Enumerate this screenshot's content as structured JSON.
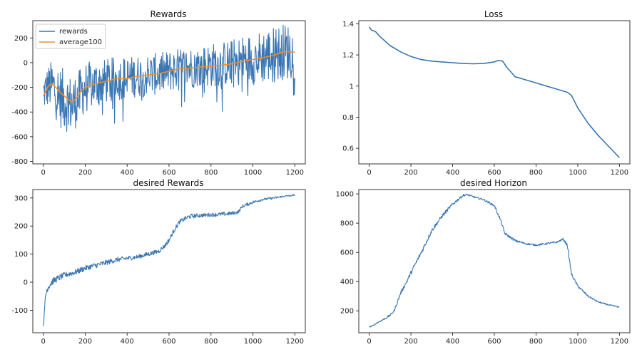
{
  "figure": {
    "background": "#ffffff"
  },
  "colors": {
    "series_blue": "#3a76b2",
    "series_orange": "#f28e2b",
    "axis": "#222222"
  },
  "chart_data": [
    {
      "type": "line",
      "title": "Rewards",
      "xlim": [
        -50,
        1250
      ],
      "ylim": [
        -820,
        340
      ],
      "xticks": [
        0,
        200,
        400,
        600,
        800,
        1000,
        1200
      ],
      "yticks": [
        -800,
        -600,
        -400,
        -200,
        0,
        200
      ],
      "legend": "top-left",
      "series": [
        {
          "name": "rewards",
          "color": "#3a76b2",
          "noisy": true,
          "x": [
            0,
            20,
            40,
            60,
            80,
            100,
            120,
            140,
            160,
            180,
            200,
            250,
            300,
            350,
            400,
            450,
            500,
            550,
            600,
            650,
            700,
            750,
            800,
            850,
            900,
            950,
            1000,
            1050,
            1100,
            1150,
            1200
          ],
          "y": [
            -250,
            -200,
            -180,
            -230,
            -280,
            -300,
            -330,
            -340,
            -300,
            -250,
            -200,
            -170,
            -150,
            -130,
            -120,
            -110,
            -100,
            -90,
            -70,
            -50,
            -40,
            -30,
            -20,
            -10,
            0,
            20,
            30,
            50,
            70,
            90,
            90
          ],
          "amplitude": [
            150,
            170,
            200,
            230,
            250,
            250,
            240,
            230,
            220,
            210,
            200,
            190,
            180,
            180,
            170,
            170,
            170,
            170,
            170,
            170,
            170,
            170,
            180,
            180,
            190,
            200,
            210,
            220,
            230,
            230,
            230
          ]
        },
        {
          "name": "average100",
          "color": "#f28e2b",
          "noisy": false,
          "x": [
            0,
            10,
            20,
            30,
            40,
            60,
            80,
            100,
            120,
            140,
            160,
            180,
            200,
            250,
            300,
            350,
            400,
            450,
            500,
            550,
            600,
            650,
            700,
            750,
            800,
            850,
            900,
            950,
            1000,
            1050,
            1100,
            1150,
            1200
          ],
          "y": [
            -270,
            -240,
            -200,
            -180,
            -170,
            -200,
            -240,
            -270,
            -300,
            -320,
            -280,
            -230,
            -200,
            -170,
            -150,
            -130,
            -130,
            -110,
            -100,
            -90,
            -70,
            -50,
            -45,
            -35,
            -30,
            -20,
            -10,
            10,
            25,
            40,
            60,
            90,
            85
          ]
        }
      ]
    },
    {
      "type": "line",
      "title": "Loss",
      "xlim": [
        -50,
        1250
      ],
      "ylim": [
        0.5,
        1.42
      ],
      "xticks": [
        0,
        200,
        400,
        600,
        800,
        1000,
        1200
      ],
      "yticks": [
        0.6,
        0.8,
        1.0,
        1.2,
        1.4
      ],
      "series": [
        {
          "color": "#3a76b2",
          "noisy": false,
          "x": [
            0,
            10,
            30,
            50,
            75,
            100,
            150,
            200,
            250,
            300,
            350,
            400,
            450,
            500,
            550,
            600,
            620,
            640,
            660,
            680,
            700,
            750,
            800,
            850,
            900,
            950,
            970,
            1000,
            1050,
            1100,
            1150,
            1200
          ],
          "y": [
            1.38,
            1.36,
            1.35,
            1.32,
            1.29,
            1.26,
            1.22,
            1.19,
            1.17,
            1.16,
            1.155,
            1.15,
            1.145,
            1.143,
            1.145,
            1.155,
            1.165,
            1.16,
            1.12,
            1.09,
            1.06,
            1.04,
            1.02,
            1.0,
            0.98,
            0.96,
            0.94,
            0.86,
            0.76,
            0.68,
            0.61,
            0.54
          ]
        }
      ]
    },
    {
      "type": "line",
      "title": "desired Rewards",
      "xlim": [
        -50,
        1250
      ],
      "ylim": [
        -180,
        330
      ],
      "xticks": [
        0,
        200,
        400,
        600,
        800,
        1000,
        1200
      ],
      "yticks": [
        -100,
        0,
        100,
        200,
        300
      ],
      "series": [
        {
          "color": "#3a76b2",
          "noisy": true,
          "x": [
            0,
            5,
            10,
            20,
            40,
            60,
            100,
            150,
            200,
            250,
            300,
            350,
            400,
            450,
            500,
            550,
            580,
            600,
            620,
            650,
            680,
            700,
            750,
            800,
            850,
            900,
            930,
            950,
            1000,
            1050,
            1100,
            1150,
            1200
          ],
          "y": [
            -150,
            -120,
            -50,
            -20,
            0,
            10,
            25,
            35,
            50,
            60,
            70,
            80,
            85,
            90,
            100,
            110,
            130,
            150,
            180,
            215,
            228,
            235,
            238,
            240,
            242,
            245,
            250,
            270,
            285,
            295,
            300,
            306,
            310
          ],
          "amplitude": [
            10,
            15,
            20,
            14,
            12,
            12,
            10,
            10,
            10,
            10,
            9,
            9,
            8,
            8,
            8,
            8,
            8,
            8,
            8,
            8,
            8,
            8,
            7,
            7,
            7,
            7,
            6,
            6,
            5,
            4,
            4,
            3,
            3
          ]
        }
      ]
    },
    {
      "type": "line",
      "title": "desired Horizon",
      "xlim": [
        -50,
        1250
      ],
      "ylim": [
        50,
        1030
      ],
      "xticks": [
        0,
        200,
        400,
        600,
        800,
        1000,
        1200
      ],
      "yticks": [
        200,
        400,
        600,
        800,
        1000
      ],
      "series": [
        {
          "color": "#3a76b2",
          "noisy": true,
          "x": [
            0,
            20,
            40,
            80,
            100,
            120,
            150,
            180,
            200,
            250,
            300,
            350,
            400,
            450,
            470,
            500,
            550,
            600,
            630,
            650,
            700,
            750,
            800,
            850,
            900,
            930,
            950,
            970,
            1000,
            1050,
            1100,
            1150,
            1200
          ],
          "y": [
            90,
            100,
            120,
            150,
            170,
            200,
            320,
            400,
            460,
            600,
            750,
            850,
            930,
            990,
            995,
            980,
            960,
            920,
            820,
            730,
            680,
            660,
            650,
            660,
            670,
            690,
            650,
            450,
            370,
            300,
            260,
            240,
            225
          ],
          "amplitude": [
            4,
            4,
            5,
            6,
            7,
            8,
            12,
            12,
            14,
            14,
            14,
            12,
            10,
            8,
            6,
            6,
            6,
            8,
            10,
            10,
            8,
            6,
            6,
            6,
            6,
            8,
            10,
            10,
            8,
            6,
            5,
            4,
            4
          ]
        }
      ]
    }
  ]
}
